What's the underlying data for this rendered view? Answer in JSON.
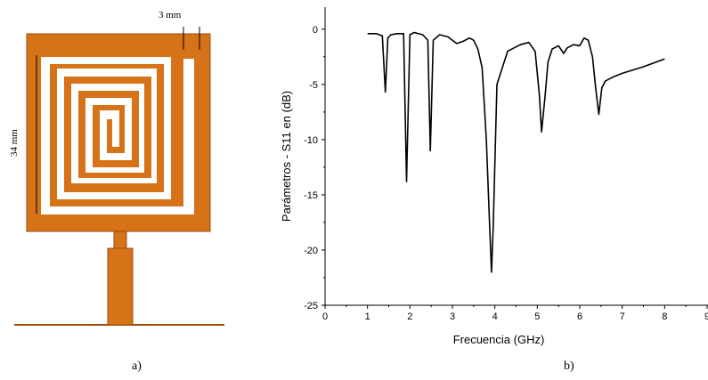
{
  "figure_a": {
    "caption": "a)",
    "dim_width": "3 mm",
    "dim_height": "34 mm",
    "colors": {
      "patch": "#d67218",
      "outline": "#9a4e0c",
      "ground": "#9a4e0c"
    }
  },
  "figure_b": {
    "caption": "b)"
  },
  "chart_data": {
    "type": "line",
    "xlabel": "Frecuencia (GHz)",
    "ylabel": "Parámetros - S11 en (dB)",
    "xlim": [
      0,
      9
    ],
    "ylim": [
      -25,
      2
    ],
    "xticks": [
      0,
      1,
      2,
      3,
      4,
      5,
      6,
      7,
      8,
      9
    ],
    "yticks": [
      0,
      -5,
      -10,
      -15,
      -20,
      -25
    ],
    "grid": false,
    "series": [
      {
        "color": "#000000",
        "x": [
          1.0,
          1.2,
          1.35,
          1.42,
          1.48,
          1.55,
          1.7,
          1.85,
          1.92,
          2.0,
          2.1,
          2.3,
          2.42,
          2.48,
          2.55,
          2.7,
          2.9,
          3.1,
          3.25,
          3.4,
          3.5,
          3.6,
          3.7,
          3.8,
          3.88,
          3.92,
          3.96,
          4.05,
          4.3,
          4.6,
          4.8,
          4.95,
          5.05,
          5.1,
          5.18,
          5.25,
          5.35,
          5.5,
          5.62,
          5.7,
          5.85,
          6.0,
          6.1,
          6.2,
          6.3,
          6.38,
          6.45,
          6.52,
          6.6,
          6.8,
          7.0,
          7.5,
          8.0
        ],
        "y": [
          -0.4,
          -0.4,
          -0.6,
          -5.7,
          -0.8,
          -0.5,
          -0.4,
          -0.4,
          -13.8,
          -0.5,
          -0.3,
          -0.5,
          -1.0,
          -11.0,
          -1.0,
          -0.5,
          -0.7,
          -1.3,
          -1.1,
          -0.8,
          -1.0,
          -1.8,
          -3.5,
          -10.0,
          -18.0,
          -22.0,
          -18.0,
          -5.0,
          -2.0,
          -1.4,
          -1.2,
          -2.0,
          -6.0,
          -9.3,
          -6.2,
          -3.0,
          -1.8,
          -1.5,
          -2.2,
          -1.7,
          -1.4,
          -1.5,
          -0.8,
          -1.0,
          -2.5,
          -5.5,
          -7.7,
          -5.3,
          -4.7,
          -4.3,
          -4.0,
          -3.4,
          -2.7
        ]
      }
    ]
  }
}
